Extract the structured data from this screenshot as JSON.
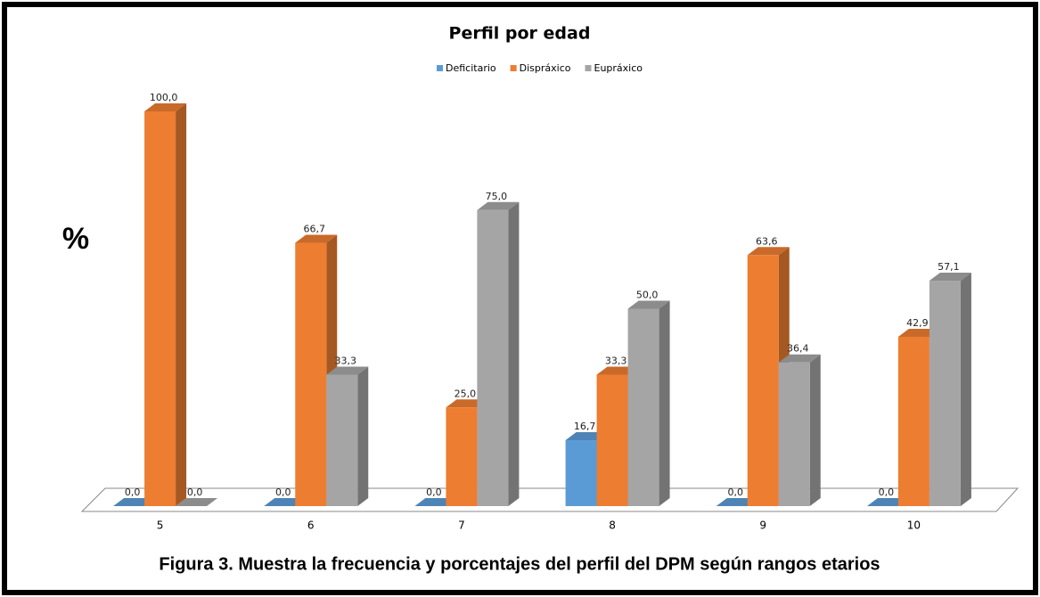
{
  "chart_data": {
    "type": "bar3d",
    "title": "Perfil por edad",
    "y_label": "%",
    "caption": "Figura 3. Muestra la frecuencia y porcentajes del perfil del DPM según rangos etarios",
    "categories": [
      "5",
      "6",
      "7",
      "8",
      "9",
      "10"
    ],
    "series": [
      {
        "name": "Deficitario",
        "color": "#5b9bd5",
        "values": [
          0,
          0,
          0,
          16.7,
          0,
          0
        ],
        "value_labels": [
          "0,0",
          "0,0",
          "0,0",
          "16,7",
          "0,0",
          "0,0"
        ]
      },
      {
        "name": "Dispráxico",
        "color": "#ed7d31",
        "values": [
          100,
          66.7,
          25,
          33.3,
          63.6,
          42.9
        ],
        "value_labels": [
          "100,0",
          "66,7",
          "25,0",
          "33,3",
          "63,6",
          "42,9"
        ]
      },
      {
        "name": "Eupráxico",
        "color": "#a5a5a5",
        "values": [
          0,
          33.3,
          75,
          50,
          36.4,
          57.1
        ],
        "value_labels": [
          "0,0",
          "33,3",
          "75,0",
          "50,0",
          "36,4",
          "57,1"
        ]
      }
    ],
    "legend": "top"
  }
}
